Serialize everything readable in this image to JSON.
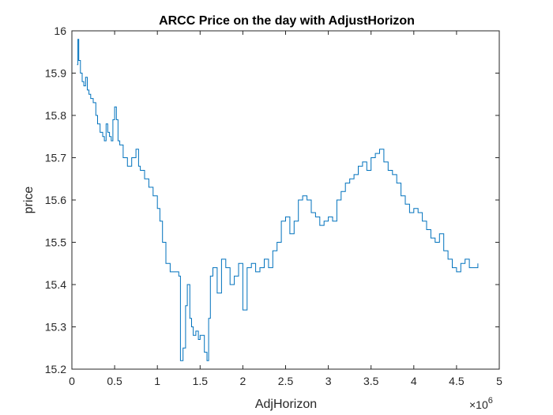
{
  "chart_data": {
    "type": "line",
    "title": "ARCC Price on the day with AdjustHorizon",
    "xlabel": "AdjHorizon",
    "ylabel": "price",
    "x_exponent_base": "×10",
    "x_exponent_power": "6",
    "x_scale": 1000000,
    "xlim": [
      0,
      5
    ],
    "ylim": [
      15.2,
      16.0
    ],
    "x_ticks": [
      "0",
      "0.5",
      "1",
      "1.5",
      "2",
      "2.5",
      "3",
      "3.5",
      "4",
      "4.5",
      "5"
    ],
    "x_tick_values": [
      0,
      0.5,
      1,
      1.5,
      2,
      2.5,
      3,
      3.5,
      4,
      4.5,
      5
    ],
    "y_ticks": [
      "15.2",
      "15.3",
      "15.4",
      "15.5",
      "15.6",
      "15.7",
      "15.8",
      "15.9",
      "16"
    ],
    "y_tick_values": [
      15.2,
      15.3,
      15.4,
      15.5,
      15.6,
      15.7,
      15.8,
      15.9,
      16.0
    ],
    "grid": false,
    "line_color": "#0072BD",
    "series": [
      {
        "x": [
          0.06,
          0.07,
          0.08,
          0.1,
          0.12,
          0.14,
          0.16,
          0.18,
          0.2,
          0.22,
          0.25,
          0.28,
          0.3,
          0.33,
          0.36,
          0.38,
          0.4,
          0.42,
          0.44,
          0.46,
          0.48,
          0.5,
          0.52,
          0.54,
          0.56,
          0.6,
          0.65,
          0.7,
          0.75,
          0.78,
          0.8,
          0.85,
          0.9,
          0.95,
          1.0,
          1.03,
          1.06,
          1.1,
          1.15,
          1.2,
          1.25,
          1.27,
          1.3,
          1.33,
          1.35,
          1.38,
          1.4,
          1.42,
          1.45,
          1.48,
          1.5,
          1.55,
          1.58,
          1.6,
          1.62,
          1.65,
          1.7,
          1.75,
          1.8,
          1.85,
          1.9,
          1.95,
          2.0,
          2.05,
          2.1,
          2.15,
          2.2,
          2.25,
          2.3,
          2.35,
          2.4,
          2.45,
          2.5,
          2.55,
          2.6,
          2.65,
          2.7,
          2.75,
          2.8,
          2.85,
          2.9,
          2.95,
          3.0,
          3.05,
          3.1,
          3.15,
          3.2,
          3.25,
          3.3,
          3.35,
          3.4,
          3.45,
          3.5,
          3.55,
          3.6,
          3.65,
          3.7,
          3.75,
          3.8,
          3.85,
          3.9,
          3.95,
          4.0,
          4.05,
          4.1,
          4.15,
          4.2,
          4.25,
          4.3,
          4.35,
          4.4,
          4.45,
          4.5,
          4.55,
          4.6,
          4.65,
          4.7,
          4.75
        ],
        "y": [
          15.92,
          15.98,
          15.93,
          15.9,
          15.88,
          15.87,
          15.89,
          15.86,
          15.85,
          15.84,
          15.83,
          15.8,
          15.78,
          15.76,
          15.75,
          15.74,
          15.78,
          15.76,
          15.75,
          15.74,
          15.79,
          15.82,
          15.79,
          15.74,
          15.73,
          15.7,
          15.68,
          15.7,
          15.72,
          15.68,
          15.67,
          15.65,
          15.63,
          15.61,
          15.58,
          15.55,
          15.5,
          15.45,
          15.43,
          15.43,
          15.42,
          15.22,
          15.25,
          15.35,
          15.4,
          15.32,
          15.3,
          15.28,
          15.29,
          15.27,
          15.28,
          15.24,
          15.22,
          15.32,
          15.42,
          15.44,
          15.38,
          15.46,
          15.44,
          15.4,
          15.42,
          15.45,
          15.34,
          15.44,
          15.45,
          15.43,
          15.44,
          15.46,
          15.44,
          15.48,
          15.5,
          15.55,
          15.56,
          15.52,
          15.55,
          15.6,
          15.61,
          15.6,
          15.57,
          15.56,
          15.54,
          15.55,
          15.56,
          15.55,
          15.6,
          15.62,
          15.64,
          15.65,
          15.66,
          15.68,
          15.69,
          15.67,
          15.7,
          15.71,
          15.72,
          15.69,
          15.67,
          15.66,
          15.64,
          15.61,
          15.59,
          15.57,
          15.58,
          15.57,
          15.55,
          15.53,
          15.51,
          15.5,
          15.52,
          15.48,
          15.46,
          15.44,
          15.43,
          15.45,
          15.46,
          15.44,
          15.44,
          15.45
        ]
      }
    ]
  }
}
